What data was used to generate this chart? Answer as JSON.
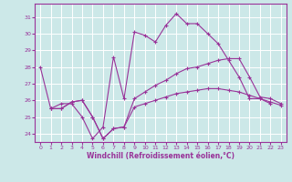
{
  "xlabel": "Windchill (Refroidissement éolien,°C)",
  "bg_color": "#cce8e8",
  "grid_color": "#ffffff",
  "line_color": "#993399",
  "x_ticks": [
    0,
    1,
    2,
    3,
    4,
    5,
    6,
    7,
    8,
    9,
    10,
    11,
    12,
    13,
    14,
    15,
    16,
    17,
    18,
    19,
    20,
    21,
    22,
    23
  ],
  "y_ticks": [
    24,
    25,
    26,
    27,
    28,
    29,
    30,
    31
  ],
  "ylim": [
    23.5,
    31.8
  ],
  "xlim": [
    -0.5,
    23.5
  ],
  "series1": [
    28.0,
    25.5,
    25.8,
    25.8,
    25.0,
    23.7,
    24.4,
    28.6,
    26.1,
    30.1,
    29.9,
    29.5,
    30.5,
    31.2,
    30.6,
    30.6,
    30.0,
    29.4,
    28.4,
    27.4,
    26.1,
    26.1,
    25.8
  ],
  "series2": [
    25.5,
    25.5,
    25.9,
    26.0,
    25.0,
    23.7,
    24.3,
    24.4,
    26.1,
    26.5,
    26.9,
    27.2,
    27.6,
    27.9,
    28.0,
    28.2,
    28.4,
    28.5,
    28.5,
    27.4,
    26.2,
    26.1,
    25.8
  ],
  "series3": [
    25.5,
    25.5,
    25.9,
    26.0,
    25.0,
    23.7,
    24.3,
    24.4,
    25.6,
    25.8,
    26.0,
    26.2,
    26.4,
    26.5,
    26.6,
    26.7,
    26.7,
    26.6,
    26.5,
    26.3,
    26.1,
    25.9,
    25.7
  ]
}
